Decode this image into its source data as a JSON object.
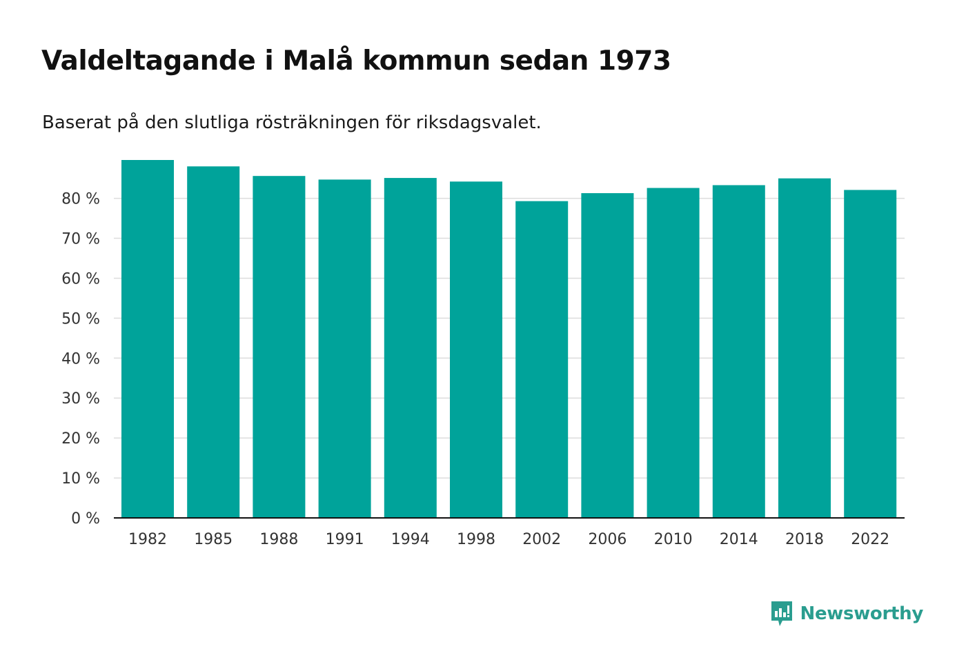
{
  "header": {
    "title": "Valdeltagande i Malå kommun sedan 1973",
    "subtitle": "Baserat på den slutliga rösträkningen för riksdagsvalet."
  },
  "brand": {
    "name": "Newsworthy",
    "logo_icon": "newsworthy-logo-icon",
    "color": "#2a9d8f"
  },
  "colors": {
    "bar": "#00a39a",
    "grid": "#dddddd",
    "axis": "#111111",
    "tick_text": "#333333"
  },
  "chart_data": {
    "type": "bar",
    "title": "Valdeltagande i Malå kommun sedan 1973",
    "subtitle": "Baserat på den slutliga rösträkningen för riksdagsvalet.",
    "xlabel": "",
    "ylabel": "",
    "categories": [
      "1982",
      "1985",
      "1988",
      "1991",
      "1994",
      "1998",
      "2002",
      "2006",
      "2010",
      "2014",
      "2018",
      "2022"
    ],
    "values": [
      89.6,
      88.0,
      85.6,
      84.7,
      85.1,
      84.2,
      79.3,
      81.3,
      82.6,
      83.3,
      85.0,
      82.1
    ],
    "ylim": [
      0,
      89.6
    ],
    "yticks": [
      0,
      10,
      20,
      30,
      40,
      50,
      60,
      70,
      80
    ],
    "ytick_labels": [
      "0 %",
      "10 %",
      "20 %",
      "30 %",
      "40 %",
      "50 %",
      "60 %",
      "70 %",
      "80 %"
    ],
    "grid": true,
    "legend": "none"
  }
}
